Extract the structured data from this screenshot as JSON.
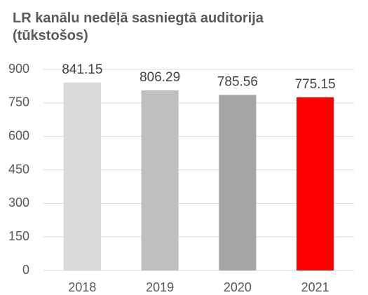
{
  "chart_data": {
    "type": "bar",
    "title": "LR kanālu nedēļā sasniegtā auditorija (tūkstošos)",
    "categories": [
      "2018",
      "2019",
      "2020",
      "2021"
    ],
    "values": [
      841.15,
      806.29,
      785.56,
      775.15
    ],
    "colors": [
      "#d9d9d9",
      "#bfbfbf",
      "#a5a5a5",
      "#ff0000"
    ],
    "ylim": [
      0,
      900
    ],
    "yticks": [
      0,
      150,
      300,
      450,
      600,
      750,
      900
    ],
    "grid": true
  }
}
